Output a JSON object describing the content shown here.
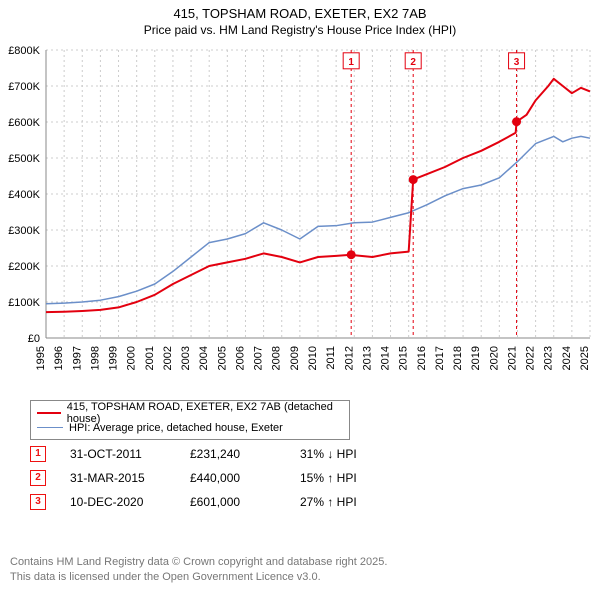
{
  "title_line1": "415, TOPSHAM ROAD, EXETER, EX2 7AB",
  "title_line2": "Price paid vs. HM Land Registry's House Price Index (HPI)",
  "chart": {
    "type": "line",
    "background_color": "#ffffff",
    "grid_color": "#cccccc",
    "grid_dash": "2,3",
    "axis_color": "#888888",
    "text_color": "#000000",
    "font_size_ticks": 11,
    "x": {
      "min": 1995,
      "max": 2025,
      "ticks": [
        1995,
        1996,
        1997,
        1998,
        1999,
        2000,
        2001,
        2002,
        2003,
        2004,
        2005,
        2006,
        2007,
        2008,
        2009,
        2010,
        2011,
        2012,
        2013,
        2014,
        2015,
        2016,
        2017,
        2018,
        2019,
        2020,
        2021,
        2022,
        2023,
        2024,
        2025
      ]
    },
    "y": {
      "min": 0,
      "max": 800000,
      "ticks": [
        0,
        100000,
        200000,
        300000,
        400000,
        500000,
        600000,
        700000,
        800000
      ],
      "labels": [
        "£0",
        "£100K",
        "£200K",
        "£300K",
        "£400K",
        "£500K",
        "£600K",
        "£700K",
        "£800K"
      ]
    },
    "series": [
      {
        "name": "price_paid",
        "color": "#e3000f",
        "width": 2,
        "points": [
          [
            1995,
            72000
          ],
          [
            1996,
            73000
          ],
          [
            1997,
            75000
          ],
          [
            1998,
            78000
          ],
          [
            1999,
            85000
          ],
          [
            2000,
            100000
          ],
          [
            2001,
            120000
          ],
          [
            2002,
            150000
          ],
          [
            2003,
            175000
          ],
          [
            2004,
            200000
          ],
          [
            2005,
            210000
          ],
          [
            2006,
            220000
          ],
          [
            2007,
            235000
          ],
          [
            2008,
            225000
          ],
          [
            2009,
            210000
          ],
          [
            2010,
            225000
          ],
          [
            2011,
            228000
          ],
          [
            2011.83,
            231240
          ],
          [
            2012,
            230000
          ],
          [
            2013,
            225000
          ],
          [
            2014,
            235000
          ],
          [
            2015.0,
            240000
          ],
          [
            2015.25,
            440000
          ],
          [
            2016,
            455000
          ],
          [
            2017,
            475000
          ],
          [
            2018,
            500000
          ],
          [
            2019,
            520000
          ],
          [
            2020,
            545000
          ],
          [
            2020.9,
            570000
          ],
          [
            2020.95,
            601000
          ],
          [
            2021.5,
            620000
          ],
          [
            2022,
            660000
          ],
          [
            2022.7,
            700000
          ],
          [
            2023,
            720000
          ],
          [
            2023.5,
            700000
          ],
          [
            2024,
            680000
          ],
          [
            2024.5,
            695000
          ],
          [
            2025,
            685000
          ]
        ]
      },
      {
        "name": "hpi",
        "color": "#6b8fc9",
        "width": 1.5,
        "points": [
          [
            1995,
            95000
          ],
          [
            1996,
            97000
          ],
          [
            1997,
            100000
          ],
          [
            1998,
            105000
          ],
          [
            1999,
            115000
          ],
          [
            2000,
            130000
          ],
          [
            2001,
            150000
          ],
          [
            2002,
            185000
          ],
          [
            2003,
            225000
          ],
          [
            2004,
            265000
          ],
          [
            2005,
            275000
          ],
          [
            2006,
            290000
          ],
          [
            2007,
            320000
          ],
          [
            2008,
            300000
          ],
          [
            2009,
            275000
          ],
          [
            2010,
            310000
          ],
          [
            2011,
            312000
          ],
          [
            2012,
            320000
          ],
          [
            2013,
            322000
          ],
          [
            2014,
            335000
          ],
          [
            2015,
            348000
          ],
          [
            2016,
            370000
          ],
          [
            2017,
            395000
          ],
          [
            2018,
            415000
          ],
          [
            2019,
            425000
          ],
          [
            2020,
            445000
          ],
          [
            2021,
            490000
          ],
          [
            2022,
            540000
          ],
          [
            2023,
            560000
          ],
          [
            2023.5,
            545000
          ],
          [
            2024,
            555000
          ],
          [
            2024.5,
            560000
          ],
          [
            2025,
            555000
          ]
        ]
      }
    ],
    "markers": [
      {
        "n": "1",
        "x": 2011.83,
        "y": 231240,
        "label_y": 770000
      },
      {
        "n": "2",
        "x": 2015.25,
        "y": 440000,
        "label_y": 770000
      },
      {
        "n": "3",
        "x": 2020.95,
        "y": 601000,
        "label_y": 770000
      }
    ],
    "marker_dot_color": "#e3000f",
    "marker_box_border": "#e3000f",
    "marker_box_text": "#e3000f",
    "marker_line_color": "#e3000f",
    "marker_line_dash": "3,3"
  },
  "legend": [
    {
      "color": "#e3000f",
      "width": 2,
      "label": "415, TOPSHAM ROAD, EXETER, EX2 7AB (detached house)"
    },
    {
      "color": "#6b8fc9",
      "width": 1.5,
      "label": "HPI: Average price, detached house, Exeter"
    }
  ],
  "annotations": [
    {
      "n": "1",
      "date": "31-OCT-2011",
      "price": "£231,240",
      "delta": "31% ↓ HPI"
    },
    {
      "n": "2",
      "date": "31-MAR-2015",
      "price": "£440,000",
      "delta": "15% ↑ HPI"
    },
    {
      "n": "3",
      "date": "10-DEC-2020",
      "price": "£601,000",
      "delta": "27% ↑ HPI"
    }
  ],
  "footer_line1": "Contains HM Land Registry data © Crown copyright and database right 2025.",
  "footer_line2": "This data is licensed under the Open Government Licence v3.0."
}
